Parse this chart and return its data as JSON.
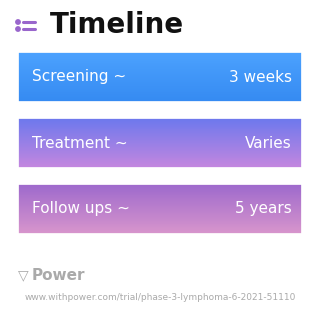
{
  "title": "Timeline",
  "title_fontsize": 20,
  "title_fontweight": "bold",
  "title_color": "#111111",
  "background_color": "#ffffff",
  "rows": [
    {
      "label": "Screening ~",
      "value": "3 weeks",
      "color_top": "#4da3ff",
      "color_bottom": "#3388f0"
    },
    {
      "label": "Treatment ~",
      "value": "Varies",
      "color_top": "#6677ee",
      "color_bottom": "#cc88dd"
    },
    {
      "label": "Follow ups ~",
      "value": "5 years",
      "color_top": "#9966cc",
      "color_bottom": "#dd99cc"
    }
  ],
  "text_color": "#ffffff",
  "label_fontsize": 11,
  "value_fontsize": 11,
  "footer_text": "Power",
  "footer_url": "www.withpower.com/trial/phase-3-lymphoma-6-2021-51110",
  "footer_color": "#aaaaaa",
  "footer_fontsize": 6.5,
  "icon_color": "#9966cc"
}
